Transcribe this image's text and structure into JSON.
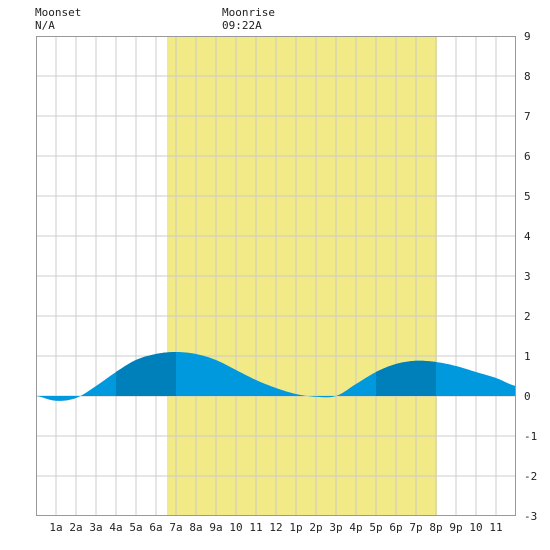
{
  "header": {
    "moonset_label": "Moonset",
    "moonset_value": "N/A",
    "moonrise_label": "Moonrise",
    "moonrise_value": "09:22A"
  },
  "chart_data": {
    "type": "area",
    "title": "",
    "xlabel": "",
    "ylabel": "",
    "x_range_hours": [
      0,
      24
    ],
    "ylim": [
      -3,
      9
    ],
    "grid": true,
    "x_tick_labels": [
      "1a",
      "2a",
      "3a",
      "4a",
      "5a",
      "6a",
      "7a",
      "8a",
      "9a",
      "10",
      "11",
      "12",
      "1p",
      "2p",
      "3p",
      "4p",
      "5p",
      "6p",
      "7p",
      "8p",
      "9p",
      "10",
      "11"
    ],
    "y_tick_labels": [
      "-3",
      "-2",
      "-1",
      "0",
      "1",
      "2",
      "3",
      "4",
      "5",
      "6",
      "7",
      "8",
      "9"
    ],
    "daylight_hours": [
      6.55,
      20.05
    ],
    "tide_series": {
      "hours": [
        0,
        1,
        2,
        3,
        4,
        5,
        6,
        7,
        8,
        9,
        10,
        11,
        12,
        13,
        14,
        15,
        16,
        17,
        18,
        19,
        20,
        21,
        22,
        23,
        24
      ],
      "heights": [
        0.0,
        -0.12,
        -0.05,
        0.25,
        0.6,
        0.9,
        1.05,
        1.1,
        1.05,
        0.9,
        0.65,
        0.4,
        0.2,
        0.05,
        -0.02,
        0.0,
        0.3,
        0.6,
        0.8,
        0.88,
        0.85,
        0.75,
        0.6,
        0.45,
        0.25
      ]
    },
    "highlight_bands": [
      [
        4,
        7
      ],
      [
        17,
        20
      ]
    ],
    "colors": {
      "daylight": "#f2ea86",
      "tide": "#0099dd",
      "tide_highlight": "#0080bb",
      "grid": "#cccccc",
      "background": "#ffffff"
    }
  }
}
